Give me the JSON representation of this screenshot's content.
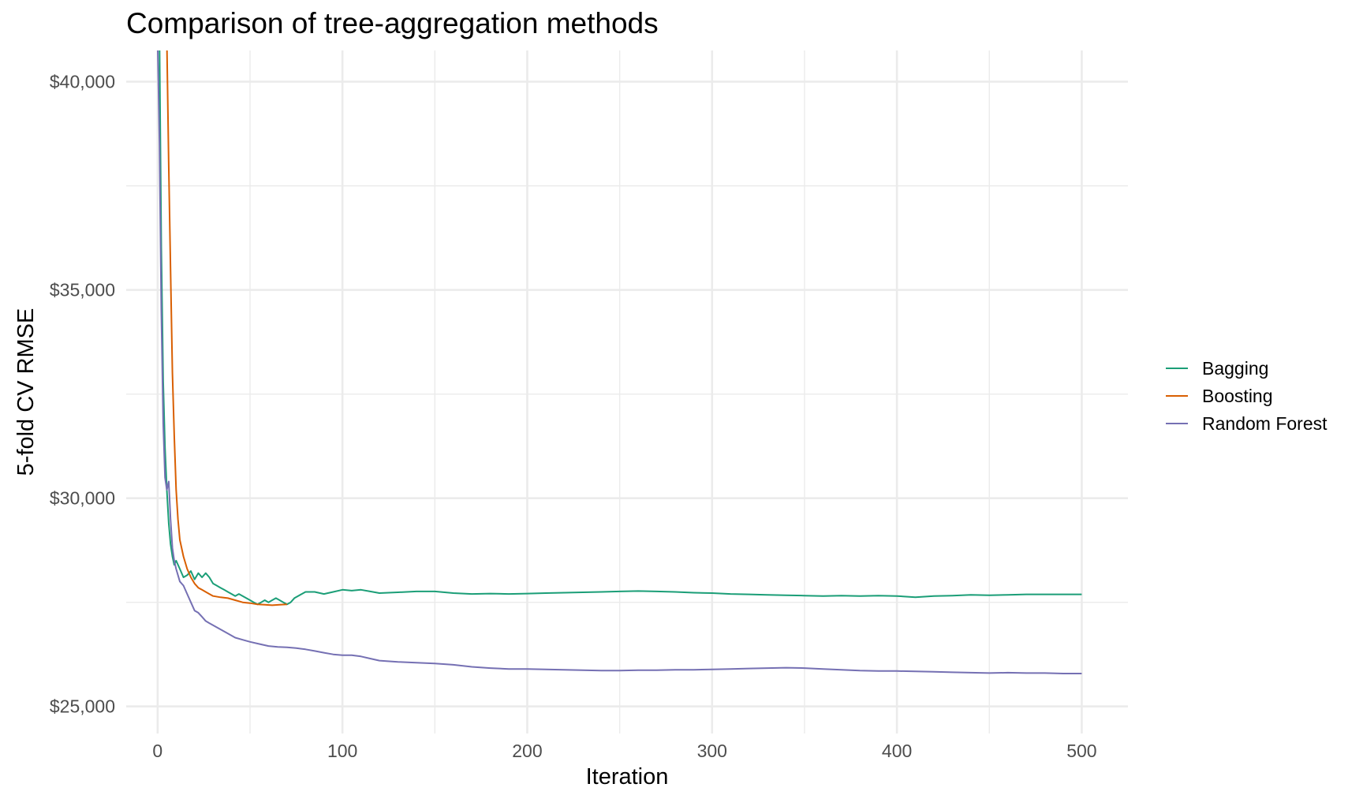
{
  "chart_data": {
    "type": "line",
    "title": "Comparison of tree-aggregation methods",
    "xlabel": "Iteration",
    "ylabel": "5-fold CV RMSE",
    "xlim": [
      -17,
      525
    ],
    "ylim": [
      24350,
      40750
    ],
    "x_ticks": [
      0,
      100,
      200,
      300,
      400,
      500
    ],
    "y_ticks": [
      25000,
      30000,
      35000,
      40000
    ],
    "y_tick_labels": [
      "$25,000",
      "$30,000",
      "$35,000",
      "$40,000"
    ],
    "grid": true,
    "legend_position": "right",
    "series": [
      {
        "name": "Bagging",
        "color": "#1b9e77",
        "points": [
          [
            1,
            41000
          ],
          [
            2,
            36000
          ],
          [
            3,
            32800
          ],
          [
            4,
            31200
          ],
          [
            5,
            30200
          ],
          [
            6,
            29400
          ],
          [
            7,
            28900
          ],
          [
            8,
            28600
          ],
          [
            9,
            28400
          ],
          [
            10,
            28500
          ],
          [
            12,
            28300
          ],
          [
            14,
            28100
          ],
          [
            16,
            28150
          ],
          [
            18,
            28250
          ],
          [
            20,
            28050
          ],
          [
            22,
            28200
          ],
          [
            24,
            28100
          ],
          [
            26,
            28200
          ],
          [
            28,
            28100
          ],
          [
            30,
            27950
          ],
          [
            32,
            27900
          ],
          [
            34,
            27850
          ],
          [
            36,
            27800
          ],
          [
            38,
            27750
          ],
          [
            40,
            27700
          ],
          [
            42,
            27650
          ],
          [
            44,
            27700
          ],
          [
            46,
            27650
          ],
          [
            48,
            27600
          ],
          [
            50,
            27550
          ],
          [
            52,
            27500
          ],
          [
            54,
            27450
          ],
          [
            56,
            27500
          ],
          [
            58,
            27550
          ],
          [
            60,
            27500
          ],
          [
            62,
            27550
          ],
          [
            64,
            27600
          ],
          [
            66,
            27550
          ],
          [
            68,
            27500
          ],
          [
            70,
            27450
          ],
          [
            72,
            27500
          ],
          [
            74,
            27600
          ],
          [
            76,
            27650
          ],
          [
            78,
            27700
          ],
          [
            80,
            27750
          ],
          [
            85,
            27750
          ],
          [
            90,
            27700
          ],
          [
            95,
            27750
          ],
          [
            100,
            27800
          ],
          [
            105,
            27780
          ],
          [
            110,
            27800
          ],
          [
            115,
            27760
          ],
          [
            120,
            27720
          ],
          [
            130,
            27740
          ],
          [
            140,
            27760
          ],
          [
            150,
            27760
          ],
          [
            160,
            27720
          ],
          [
            170,
            27700
          ],
          [
            180,
            27710
          ],
          [
            190,
            27700
          ],
          [
            200,
            27710
          ],
          [
            210,
            27720
          ],
          [
            220,
            27730
          ],
          [
            230,
            27740
          ],
          [
            240,
            27750
          ],
          [
            250,
            27760
          ],
          [
            260,
            27770
          ],
          [
            270,
            27760
          ],
          [
            280,
            27750
          ],
          [
            290,
            27730
          ],
          [
            300,
            27720
          ],
          [
            310,
            27700
          ],
          [
            320,
            27690
          ],
          [
            330,
            27680
          ],
          [
            340,
            27670
          ],
          [
            350,
            27660
          ],
          [
            360,
            27650
          ],
          [
            370,
            27660
          ],
          [
            380,
            27650
          ],
          [
            390,
            27660
          ],
          [
            400,
            27650
          ],
          [
            410,
            27620
          ],
          [
            420,
            27650
          ],
          [
            430,
            27660
          ],
          [
            440,
            27680
          ],
          [
            450,
            27670
          ],
          [
            460,
            27680
          ],
          [
            470,
            27690
          ],
          [
            480,
            27690
          ],
          [
            490,
            27690
          ],
          [
            500,
            27690
          ]
        ]
      },
      {
        "name": "Boosting",
        "color": "#d95f02",
        "points": [
          [
            5,
            41000
          ],
          [
            6,
            38000
          ],
          [
            7,
            35500
          ],
          [
            8,
            33000
          ],
          [
            9,
            31500
          ],
          [
            10,
            30200
          ],
          [
            11,
            29500
          ],
          [
            12,
            29000
          ],
          [
            14,
            28600
          ],
          [
            16,
            28300
          ],
          [
            18,
            28100
          ],
          [
            20,
            27950
          ],
          [
            22,
            27850
          ],
          [
            24,
            27800
          ],
          [
            26,
            27750
          ],
          [
            28,
            27700
          ],
          [
            30,
            27650
          ],
          [
            34,
            27620
          ],
          [
            38,
            27600
          ],
          [
            42,
            27550
          ],
          [
            46,
            27500
          ],
          [
            50,
            27480
          ],
          [
            54,
            27450
          ],
          [
            58,
            27440
          ],
          [
            62,
            27430
          ],
          [
            66,
            27440
          ],
          [
            70,
            27450
          ]
        ]
      },
      {
        "name": "Random Forest",
        "color": "#7570b3",
        "points": [
          [
            0,
            41000
          ],
          [
            1,
            38500
          ],
          [
            2,
            34500
          ],
          [
            3,
            31800
          ],
          [
            4,
            30500
          ],
          [
            5,
            30200
          ],
          [
            6,
            30400
          ],
          [
            7,
            29500
          ],
          [
            8,
            28800
          ],
          [
            9,
            28500
          ],
          [
            10,
            28300
          ],
          [
            12,
            28000
          ],
          [
            14,
            27900
          ],
          [
            16,
            27700
          ],
          [
            18,
            27500
          ],
          [
            20,
            27300
          ],
          [
            22,
            27250
          ],
          [
            24,
            27150
          ],
          [
            26,
            27050
          ],
          [
            28,
            27000
          ],
          [
            30,
            26950
          ],
          [
            34,
            26850
          ],
          [
            38,
            26750
          ],
          [
            42,
            26650
          ],
          [
            46,
            26600
          ],
          [
            50,
            26550
          ],
          [
            55,
            26500
          ],
          [
            60,
            26450
          ],
          [
            65,
            26430
          ],
          [
            70,
            26420
          ],
          [
            75,
            26400
          ],
          [
            80,
            26370
          ],
          [
            85,
            26330
          ],
          [
            90,
            26290
          ],
          [
            95,
            26250
          ],
          [
            100,
            26230
          ],
          [
            105,
            26230
          ],
          [
            110,
            26200
          ],
          [
            115,
            26150
          ],
          [
            120,
            26100
          ],
          [
            130,
            26070
          ],
          [
            140,
            26050
          ],
          [
            150,
            26030
          ],
          [
            160,
            26000
          ],
          [
            170,
            25950
          ],
          [
            180,
            25920
          ],
          [
            190,
            25900
          ],
          [
            200,
            25900
          ],
          [
            210,
            25890
          ],
          [
            220,
            25880
          ],
          [
            230,
            25870
          ],
          [
            240,
            25860
          ],
          [
            250,
            25860
          ],
          [
            260,
            25870
          ],
          [
            270,
            25870
          ],
          [
            280,
            25880
          ],
          [
            290,
            25880
          ],
          [
            300,
            25890
          ],
          [
            310,
            25900
          ],
          [
            320,
            25910
          ],
          [
            330,
            25920
          ],
          [
            340,
            25930
          ],
          [
            350,
            25920
          ],
          [
            360,
            25900
          ],
          [
            370,
            25880
          ],
          [
            380,
            25860
          ],
          [
            390,
            25850
          ],
          [
            400,
            25850
          ],
          [
            410,
            25840
          ],
          [
            420,
            25830
          ],
          [
            430,
            25820
          ],
          [
            440,
            25810
          ],
          [
            450,
            25800
          ],
          [
            460,
            25810
          ],
          [
            470,
            25800
          ],
          [
            480,
            25800
          ],
          [
            490,
            25790
          ],
          [
            500,
            25790
          ]
        ]
      }
    ]
  }
}
